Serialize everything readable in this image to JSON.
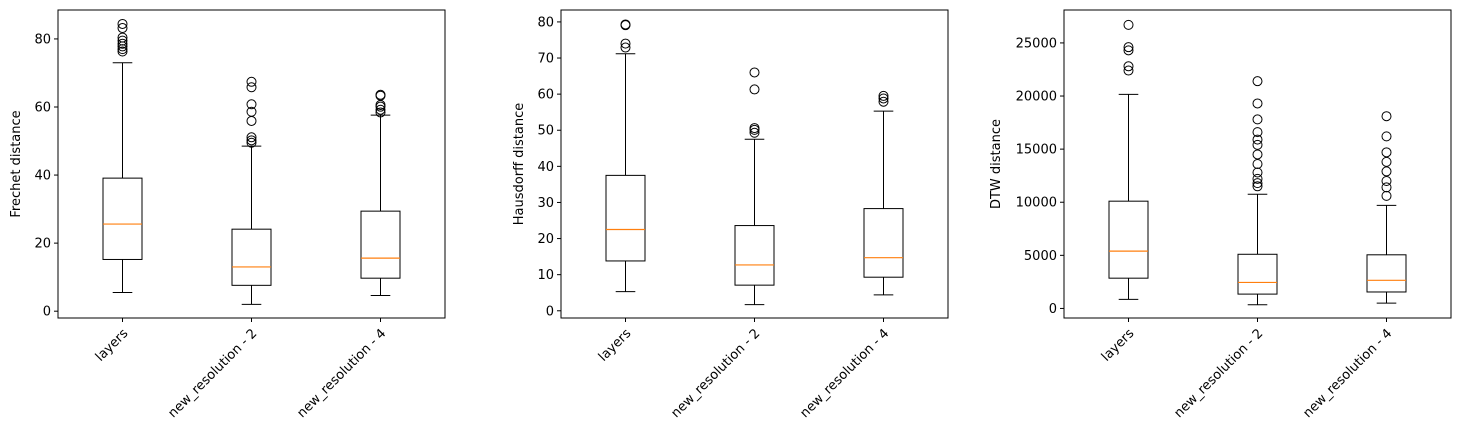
{
  "chart_data": [
    {
      "type": "box",
      "ylabel": "Frechet distance",
      "categories": [
        "layers",
        "new_resolution - 2",
        "new_resolution - 4"
      ],
      "ylim": [
        -2,
        88.5
      ],
      "yticks": [
        0,
        20,
        40,
        60,
        80
      ],
      "boxes": [
        {
          "whislo": 5.5,
          "q1": 15.2,
          "med": 25.6,
          "q3": 39.1,
          "whishi": 73.0,
          "fliers": [
            76.3,
            77.0,
            77.8,
            78.6,
            79.5,
            80.4,
            83.2,
            84.4
          ]
        },
        {
          "whislo": 2.0,
          "q1": 7.6,
          "med": 13.0,
          "q3": 24.1,
          "whishi": 48.5,
          "fliers": [
            49.5,
            50.2,
            51.1,
            55.9,
            58.6,
            60.8,
            65.8,
            67.4
          ]
        },
        {
          "whislo": 4.6,
          "q1": 9.7,
          "med": 15.6,
          "q3": 29.4,
          "whishi": 57.6,
          "fliers": [
            58.4,
            59.2,
            60.1,
            60.6,
            63.3,
            63.6
          ]
        }
      ]
    },
    {
      "type": "box",
      "ylabel": "Hausdorff distance",
      "categories": [
        "layers",
        "new_resolution - 2",
        "new_resolution - 4"
      ],
      "ylim": [
        -2,
        83.3
      ],
      "yticks": [
        0,
        10,
        20,
        30,
        40,
        50,
        60,
        70,
        80
      ],
      "boxes": [
        {
          "whislo": 5.3,
          "q1": 13.8,
          "med": 22.5,
          "q3": 37.5,
          "whishi": 71.2,
          "fliers": [
            72.9,
            74.0,
            79.1,
            79.3
          ]
        },
        {
          "whislo": 1.7,
          "q1": 7.1,
          "med": 12.7,
          "q3": 23.6,
          "whishi": 47.5,
          "fliers": [
            49.3,
            50.1,
            50.6,
            61.3,
            66.0
          ]
        },
        {
          "whislo": 4.4,
          "q1": 9.3,
          "med": 14.7,
          "q3": 28.3,
          "whishi": 55.3,
          "fliers": [
            57.9,
            58.8,
            59.5
          ]
        }
      ]
    },
    {
      "type": "box",
      "ylabel": "DTW distance",
      "categories": [
        "layers",
        "new_resolution - 2",
        "new_resolution - 4"
      ],
      "ylim": [
        -900,
        28100
      ],
      "yticks": [
        0,
        5000,
        10000,
        15000,
        20000,
        25000
      ],
      "boxes": [
        {
          "whislo": 850,
          "q1": 2850,
          "med": 5400,
          "q3": 10100,
          "whishi": 20150,
          "fliers": [
            22400,
            22800,
            24300,
            24600,
            26700
          ]
        },
        {
          "whislo": 350,
          "q1": 1350,
          "med": 2450,
          "q3": 5100,
          "whishi": 10750,
          "fliers": [
            11500,
            11800,
            12200,
            12800,
            13600,
            14500,
            15400,
            15900,
            16600,
            17800,
            19300,
            21400
          ]
        },
        {
          "whislo": 500,
          "q1": 1550,
          "med": 2650,
          "q3": 5050,
          "whishi": 9700,
          "fliers": [
            10600,
            11400,
            12000,
            12900,
            13800,
            14700,
            16200,
            18100
          ]
        }
      ]
    }
  ],
  "colors": {
    "box": "#000000",
    "median": "#ff7f0e",
    "background": "#ffffff"
  }
}
